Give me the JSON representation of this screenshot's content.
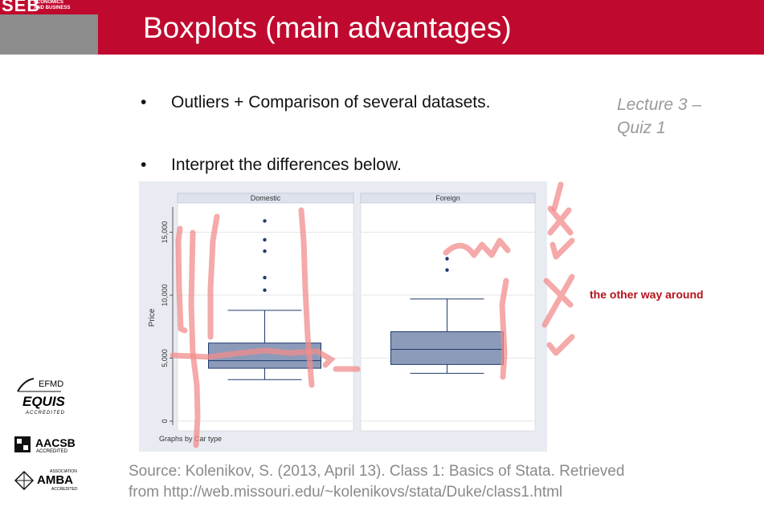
{
  "header": {
    "logo_main": "SEB",
    "logo_sub_1": "ECONOMICS",
    "logo_sub_2": "AND BUSINESS",
    "title": "Boxplots (main advantages)"
  },
  "bullets": [
    {
      "symbol": "•",
      "text": "Outliers + Comparison of several datasets."
    },
    {
      "symbol": "•",
      "text": "Interpret the differences below."
    }
  ],
  "side_note": {
    "line1": "Lecture 3 –",
    "line2": "Quiz 1"
  },
  "annotation_text": "the other way around",
  "source": {
    "line1": "Source: Kolenikov, S. (2013, April 13). Class 1: Basics of Stata. Retrieved",
    "line2": "from http://web.missouri.edu/~kolenikovs/stata/Duke/class1.html"
  },
  "accreditations": {
    "efmd": "EFMD",
    "equis": "EQUIS",
    "equis_sub": "ACCREDITED",
    "aacsb": "AACSB",
    "aacsb_sub": "ACCREDITED",
    "amba_assoc": "ASSOCIATION",
    "amba": "AMBA",
    "amba_sub": "ACCREDITED"
  },
  "chart_data": {
    "type": "boxplot",
    "ylabel": "Price",
    "ylim": [
      0,
      16500
    ],
    "yticks": [
      0,
      5000,
      10000,
      15000
    ],
    "ytick_labels": [
      "0",
      "5,000",
      "10,000",
      "15,000"
    ],
    "note": "Graphs by Car type",
    "panels": [
      {
        "name": "Domestic",
        "whisker_low": 3300,
        "q1": 4200,
        "median": 4800,
        "q3": 6200,
        "whisker_high": 8800,
        "outliers": [
          10400,
          11400,
          13500,
          14400,
          15900
        ]
      },
      {
        "name": "Foreign",
        "whisker_low": 3800,
        "q1": 4500,
        "median": 5700,
        "q3": 7100,
        "whisker_high": 9700,
        "outliers": [
          12000,
          12900
        ]
      }
    ],
    "colors": {
      "box_fill": "#8c9bb9",
      "box_stroke": "#1f3a6e",
      "outlier": "#1f3a6e",
      "panel_header": "#e8ebf2",
      "background": "#e8ebf2"
    }
  }
}
